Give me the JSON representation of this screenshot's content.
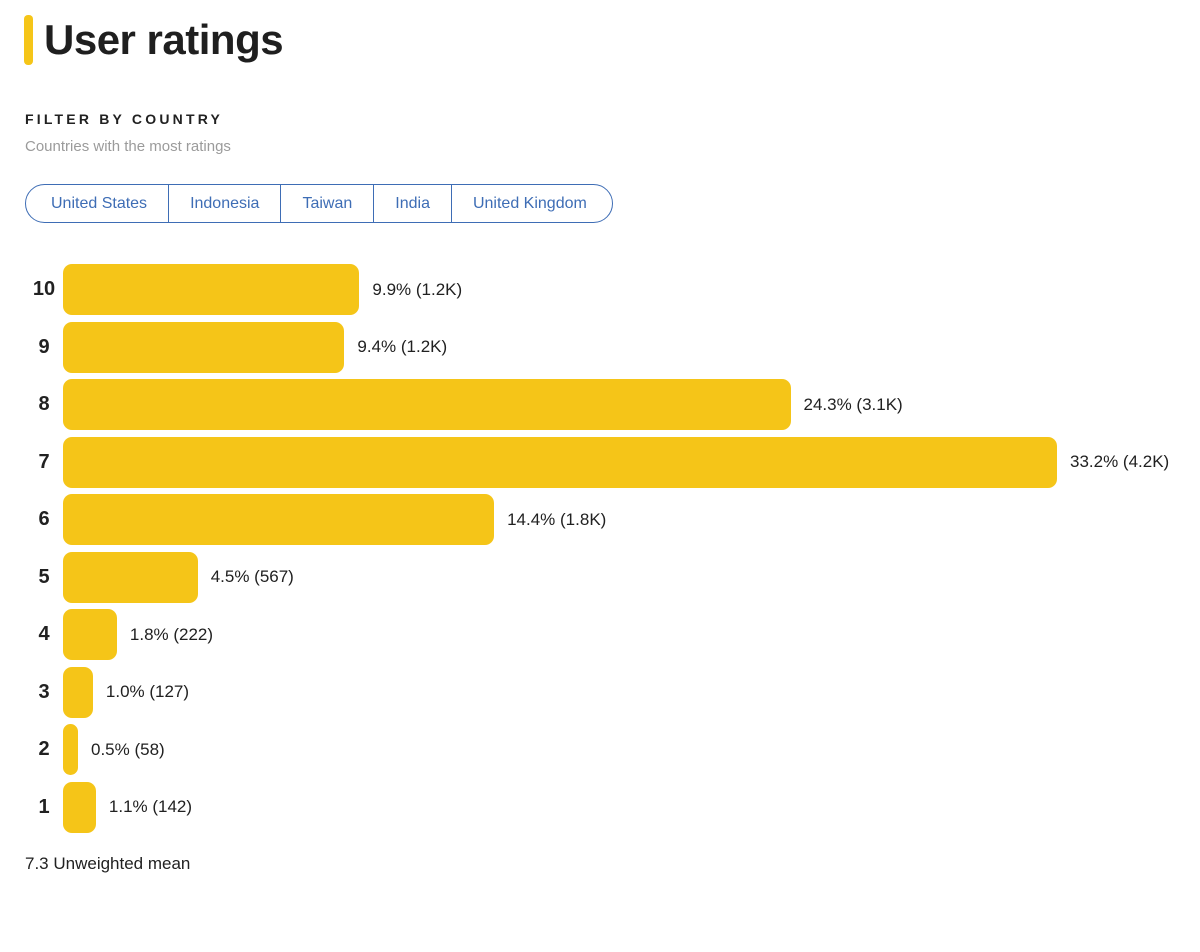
{
  "header": {
    "title": "User ratings",
    "accent_color": "#F5C518"
  },
  "filter": {
    "label": "FILTER BY COUNTRY",
    "description": "Countries with the most ratings",
    "countries": [
      "United States",
      "Indonesia",
      "Taiwan",
      "India",
      "United Kingdom"
    ],
    "link_color": "#3E6DB5"
  },
  "chart_data": {
    "type": "bar",
    "orientation": "horizontal",
    "title": "User ratings",
    "categories": [
      "10",
      "9",
      "8",
      "7",
      "6",
      "5",
      "4",
      "3",
      "2",
      "1"
    ],
    "values_percent": [
      9.9,
      9.4,
      24.3,
      33.2,
      14.4,
      4.5,
      1.8,
      1.0,
      0.5,
      1.1
    ],
    "counts": [
      "1.2K",
      "1.2K",
      "3.1K",
      "4.2K",
      "1.8K",
      "567",
      "222",
      "127",
      "58",
      "142"
    ],
    "labels": [
      "9.9% (1.2K)",
      "9.4% (1.2K)",
      "24.3% (3.1K)",
      "33.2% (4.2K)",
      "14.4% (1.8K)",
      "4.5% (567)",
      "1.8% (222)",
      "1.0% (127)",
      "0.5% (58)",
      "1.1% (142)"
    ],
    "bar_color": "#F5C518",
    "x_max_percent": 33.2,
    "grid": false,
    "legend": false
  },
  "footer": {
    "unweighted_mean": "7.3 Unweighted mean"
  }
}
